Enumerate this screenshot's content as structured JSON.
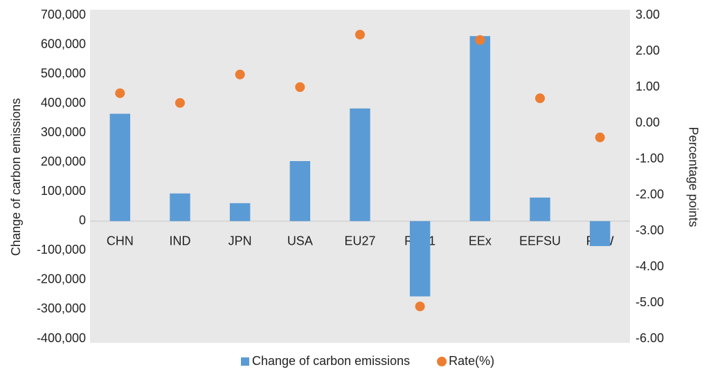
{
  "chart_data": {
    "type": "bar",
    "categories": [
      "CHN",
      "IND",
      "JPN",
      "USA",
      "EU27",
      "RoA1",
      "EEx",
      "EEFSU",
      "RoW"
    ],
    "series": [
      {
        "name": "Change of carbon emissions",
        "type": "bar",
        "color": "#5b9bd5",
        "values": [
          365000,
          94000,
          61000,
          204000,
          383000,
          -256000,
          629000,
          80000,
          -85000
        ]
      },
      {
        "name": "Rate(%)",
        "type": "scatter",
        "axis": "y2",
        "color": "#ed7d31",
        "values": [
          0.83,
          0.56,
          1.35,
          1.0,
          2.46,
          -5.1,
          2.31,
          0.69,
          -0.4
        ]
      }
    ],
    "ylabel": "Change of carbon emissions",
    "y2label": "Percentage points",
    "ylim": [
      -400000,
      700000
    ],
    "yticks": [
      {
        "value": -400000,
        "label": "-400,000"
      },
      {
        "value": -300000,
        "label": "-300,000"
      },
      {
        "value": -200000,
        "label": "-200,000"
      },
      {
        "value": -100000,
        "label": "-100,000"
      },
      0,
      {
        "value": 100000,
        "label": "100,000"
      },
      {
        "value": 200000,
        "label": "200,000"
      },
      {
        "value": 300000,
        "label": "300,000"
      },
      {
        "value": 400000,
        "label": "400,000"
      },
      {
        "value": 500000,
        "label": "500,000"
      },
      {
        "value": 600000,
        "label": "600,000"
      },
      {
        "value": 700000,
        "label": "700,000"
      }
    ],
    "y2lim": [
      -6,
      3
    ],
    "y2ticks": [
      {
        "value": -6,
        "label": "-6.00"
      },
      {
        "value": -5,
        "label": "-5.00"
      },
      {
        "value": -4,
        "label": "-4.00"
      },
      {
        "value": -3,
        "label": "-3.00"
      },
      {
        "value": -2,
        "label": "-2.00"
      },
      {
        "value": -1,
        "label": "-1.00"
      },
      {
        "value": 0,
        "label": "0.00"
      },
      {
        "value": 1,
        "label": "1.00"
      },
      {
        "value": 2,
        "label": "2.00"
      },
      {
        "value": 3,
        "label": "3.00"
      }
    ],
    "legend": "bottom"
  }
}
